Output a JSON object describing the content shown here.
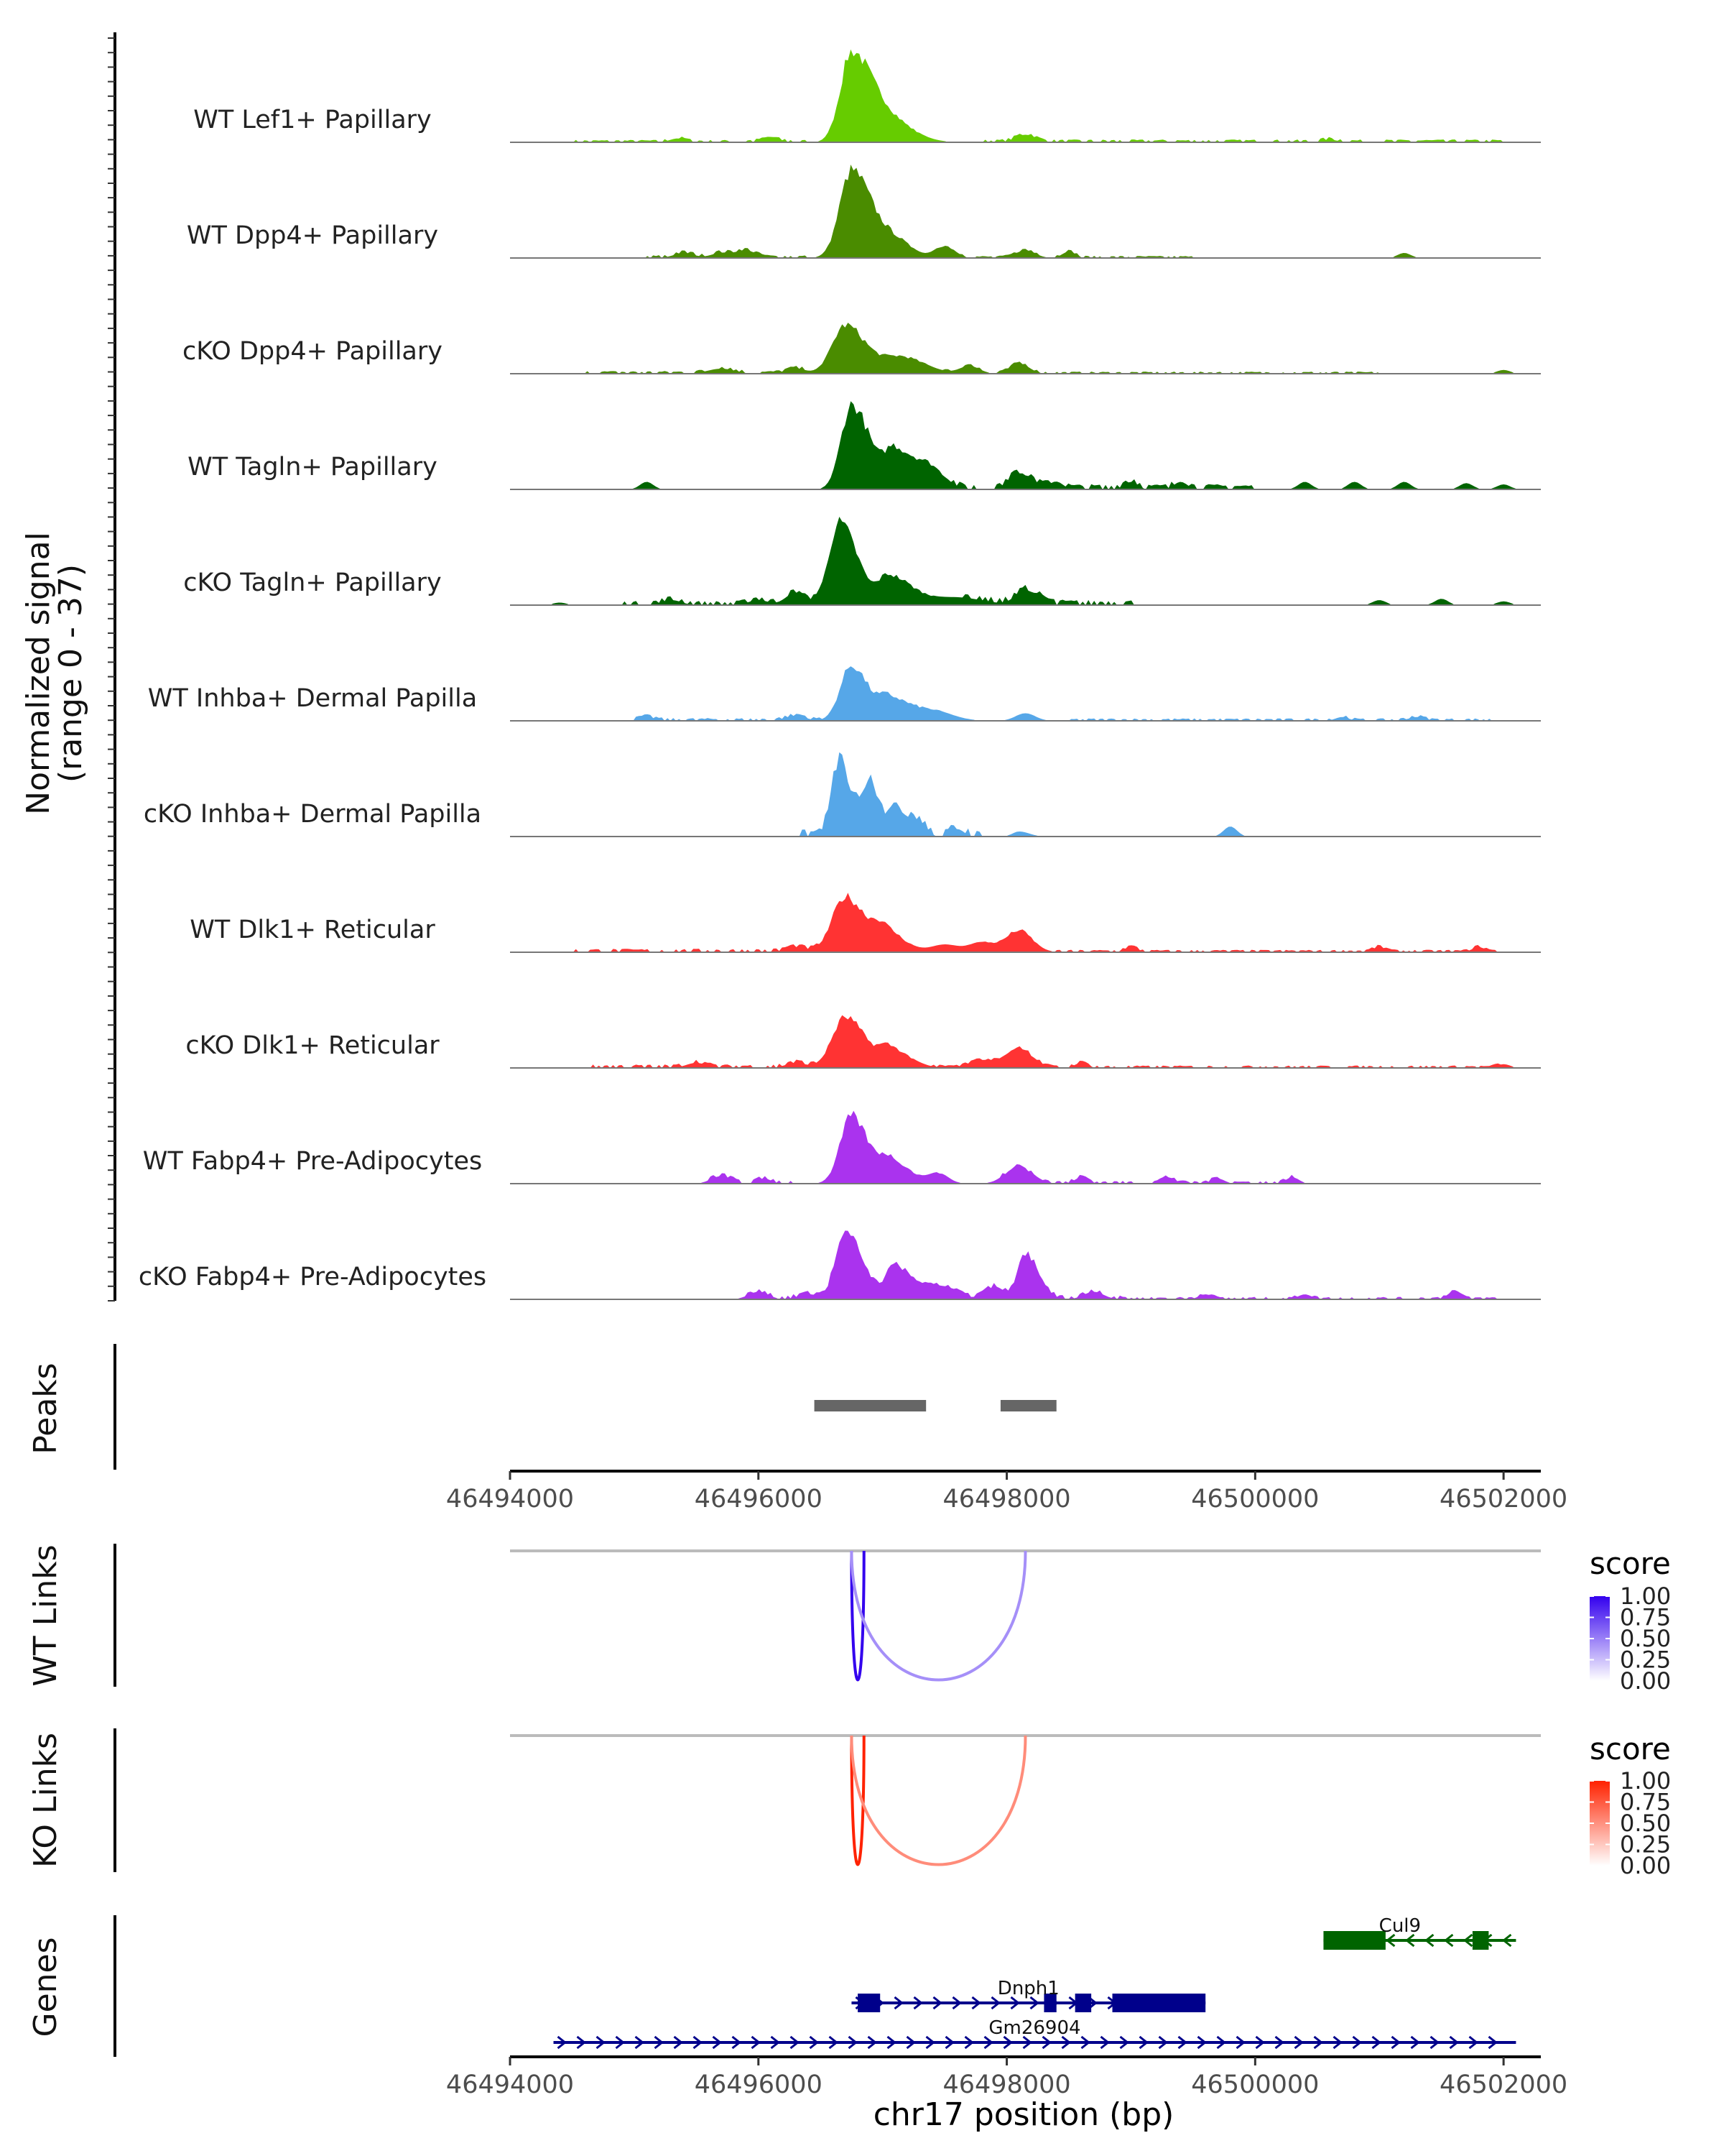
{
  "chart_data": {
    "type": "area",
    "chromosome": "chr17",
    "xlim": [
      46494000,
      46502300
    ],
    "x_ticks": [
      "46494000",
      "46496000",
      "46498000",
      "46500000",
      "46502000"
    ],
    "x_tick_values": [
      46494000,
      46496000,
      46498000,
      46500000,
      46502000
    ],
    "xlabel": "chr17 position (bp)",
    "ylabel_line1": "Normalized signal",
    "ylabel_line2": "(range 0 - 37)",
    "y_range": [
      0,
      37
    ],
    "tracks": [
      {
        "label": "WT Lef1+ Papillary",
        "color": "#66cc00",
        "peaks": [
          [
            46496750,
            37,
            170,
            300
          ],
          [
            46497050,
            9,
            250,
            350
          ],
          [
            46498150,
            3,
            150,
            150
          ],
          [
            46495350,
            1.5,
            120,
            120
          ],
          [
            46500600,
            1,
            120,
            120
          ],
          [
            46496100,
            1.5,
            150,
            150
          ]
        ],
        "noise": [
          [
            46494500,
            46496400,
            0.7
          ],
          [
            46497800,
            46502000,
            0.8
          ]
        ]
      },
      {
        "label": "WT Dpp4+ Papillary",
        "color": "#4a8c00",
        "peaks": [
          [
            46496750,
            36,
            180,
            300
          ],
          [
            46497100,
            7,
            250,
            250
          ],
          [
            46497500,
            5,
            150,
            150
          ],
          [
            46498150,
            3,
            150,
            150
          ],
          [
            46495900,
            3,
            150,
            150
          ],
          [
            46495700,
            2,
            150,
            150
          ],
          [
            46498500,
            2.5,
            100,
            100
          ],
          [
            46501200,
            2,
            100,
            100
          ],
          [
            46495400,
            2,
            150,
            150
          ]
        ],
        "noise": [
          [
            46495100,
            46496400,
            0.8
          ],
          [
            46497600,
            46499500,
            0.6
          ]
        ]
      },
      {
        "label": "cKO Dpp4+ Papillary",
        "color": "#4a8c00",
        "peaks": [
          [
            46496700,
            20,
            200,
            300
          ],
          [
            46497150,
            7,
            300,
            350
          ],
          [
            46497700,
            3,
            150,
            150
          ],
          [
            46498100,
            4,
            150,
            150
          ],
          [
            46495700,
            2,
            200,
            200
          ],
          [
            46496300,
            2,
            150,
            150
          ],
          [
            46502000,
            1.5,
            100,
            100
          ]
        ],
        "noise": [
          [
            46494600,
            46496400,
            0.8
          ],
          [
            46497500,
            46501000,
            0.6
          ]
        ]
      },
      {
        "label": "WT Tagln+ Papillary",
        "color": "#006400",
        "peaks": [
          [
            46496750,
            35,
            160,
            280
          ],
          [
            46497100,
            16,
            150,
            350
          ],
          [
            46497400,
            6,
            200,
            200
          ],
          [
            46498100,
            7,
            150,
            200
          ],
          [
            46495100,
            3,
            100,
            100
          ],
          [
            46498400,
            3,
            100,
            100
          ],
          [
            46499000,
            3,
            100,
            100
          ],
          [
            46499400,
            3,
            100,
            100
          ],
          [
            46500400,
            3,
            100,
            100
          ],
          [
            46500800,
            3,
            100,
            100
          ],
          [
            46501200,
            3,
            100,
            100
          ],
          [
            46501700,
            2.5,
            100,
            100
          ],
          [
            46502000,
            2,
            100,
            100
          ]
        ],
        "noise": [
          [
            46497500,
            46500000,
            1.5
          ]
        ]
      },
      {
        "label": "cKO Tagln+ Papillary",
        "color": "#006400",
        "peaks": [
          [
            46496650,
            34,
            160,
            280
          ],
          [
            46497050,
            12,
            150,
            350
          ],
          [
            46496300,
            5,
            150,
            150
          ],
          [
            46497600,
            3,
            400,
            400
          ],
          [
            46498150,
            6,
            150,
            200
          ],
          [
            46495300,
            2,
            150,
            150
          ],
          [
            46496000,
            2,
            150,
            150
          ],
          [
            46494400,
            1,
            100,
            100
          ],
          [
            46501000,
            2,
            100,
            100
          ],
          [
            46501500,
            2.5,
            100,
            100
          ],
          [
            46502000,
            1.5,
            100,
            100
          ]
        ],
        "noise": [
          [
            46494900,
            46496500,
            1.2
          ],
          [
            46497600,
            46499100,
            1.5
          ]
        ]
      },
      {
        "label": "WT Inhba+ Dermal Papilla",
        "color": "#56a7e8",
        "peaks": [
          [
            46496750,
            23,
            170,
            250
          ],
          [
            46497050,
            9,
            150,
            300
          ],
          [
            46497400,
            4,
            300,
            300
          ],
          [
            46498150,
            3,
            150,
            150
          ],
          [
            46496300,
            2,
            150,
            150
          ],
          [
            46495100,
            1.5,
            120,
            120
          ],
          [
            46501300,
            1.5,
            120,
            120
          ],
          [
            46500700,
            1.5,
            100,
            100
          ]
        ],
        "noise": [
          [
            46495000,
            46496500,
            0.8
          ],
          [
            46498500,
            46502000,
            0.7
          ]
        ]
      },
      {
        "label": "cKO Inhba+ Dermal Papilla",
        "color": "#56a7e8",
        "peaks": [
          [
            46496650,
            30,
            120,
            200
          ],
          [
            46496900,
            20,
            100,
            150
          ],
          [
            46497100,
            12,
            100,
            200
          ],
          [
            46497300,
            5,
            100,
            100
          ],
          [
            46497600,
            3,
            100,
            100
          ],
          [
            46498100,
            2,
            100,
            150
          ],
          [
            46499800,
            4,
            100,
            100
          ]
        ],
        "noise": [
          [
            46496300,
            46497800,
            2
          ]
        ]
      },
      {
        "label": "WT Dlk1+ Reticular",
        "color": "#ff3333",
        "peaks": [
          [
            46496700,
            23,
            200,
            300
          ],
          [
            46497000,
            9,
            150,
            300
          ],
          [
            46497500,
            3,
            200,
            200
          ],
          [
            46498100,
            9,
            200,
            200
          ],
          [
            46497800,
            4,
            200,
            200
          ],
          [
            46496300,
            2,
            150,
            150
          ],
          [
            46499000,
            2,
            100,
            100
          ],
          [
            46501000,
            2,
            100,
            100
          ],
          [
            46501800,
            2,
            100,
            100
          ]
        ],
        "noise": [
          [
            46494500,
            46496500,
            1
          ],
          [
            46498400,
            46502000,
            0.7
          ]
        ]
      },
      {
        "label": "cKO Dlk1+ Reticular",
        "color": "#ff3333",
        "peaks": [
          [
            46496700,
            21,
            200,
            300
          ],
          [
            46497050,
            8,
            150,
            300
          ],
          [
            46498100,
            8,
            200,
            200
          ],
          [
            46497800,
            3,
            200,
            200
          ],
          [
            46495500,
            2,
            150,
            150
          ],
          [
            46496300,
            2,
            150,
            150
          ],
          [
            46498600,
            2,
            100,
            100
          ],
          [
            46502000,
            1.5,
            100,
            100
          ]
        ],
        "noise": [
          [
            46494600,
            46496500,
            1
          ],
          [
            46497400,
            46502000,
            0.7
          ]
        ]
      },
      {
        "label": "WT Fabp4+ Pre-Adipocytes",
        "color": "#aa33ee",
        "peaks": [
          [
            46496750,
            28,
            170,
            250
          ],
          [
            46497050,
            10,
            150,
            300
          ],
          [
            46497450,
            4,
            150,
            150
          ],
          [
            46498100,
            7,
            200,
            200
          ],
          [
            46495700,
            3,
            150,
            150
          ],
          [
            46496050,
            2,
            100,
            100
          ],
          [
            46498600,
            2.5,
            100,
            100
          ],
          [
            46499300,
            2.5,
            100,
            100
          ],
          [
            46499700,
            2,
            100,
            100
          ],
          [
            46500300,
            2.5,
            100,
            100
          ]
        ],
        "noise": [
          [
            46495600,
            46496300,
            1
          ],
          [
            46497900,
            46500300,
            0.8
          ]
        ]
      },
      {
        "label": "cKO Fabp4+ Pre-Adipocytes",
        "color": "#aa33ee",
        "peaks": [
          [
            46496700,
            27,
            150,
            250
          ],
          [
            46497100,
            13,
            150,
            300
          ],
          [
            46497500,
            5,
            200,
            200
          ],
          [
            46498150,
            18,
            120,
            200
          ],
          [
            46497900,
            5,
            150,
            150
          ],
          [
            46496000,
            3,
            150,
            150
          ],
          [
            46496400,
            2,
            150,
            150
          ],
          [
            46498700,
            3,
            150,
            150
          ],
          [
            46499600,
            2,
            100,
            100
          ],
          [
            46500400,
            2,
            100,
            100
          ],
          [
            46501600,
            3,
            100,
            100
          ]
        ],
        "noise": [
          [
            46495900,
            46499000,
            1
          ],
          [
            46499000,
            46502000,
            0.7
          ]
        ]
      }
    ],
    "peaks_track": {
      "title": "Peaks",
      "color": "#666666",
      "regions": [
        [
          46496450,
          46497350
        ],
        [
          46497950,
          46498400
        ]
      ]
    },
    "link_tracks": [
      {
        "title": "WT Links",
        "legend_title": "score",
        "legend_ticks": [
          "1.00",
          "0.75",
          "0.50",
          "0.25",
          "0.00"
        ],
        "low_color": "#ffffff",
        "high_color": "#3300ee",
        "links": [
          {
            "start": 46496750,
            "end": 46496850,
            "score": 1.0
          },
          {
            "start": 46496750,
            "end": 46498150,
            "score": 0.3
          }
        ]
      },
      {
        "title": "KO Links",
        "legend_title": "score",
        "legend_ticks": [
          "1.00",
          "0.75",
          "0.50",
          "0.25",
          "0.00"
        ],
        "low_color": "#ffffff",
        "high_color": "#ff2200",
        "links": [
          {
            "start": 46496750,
            "end": 46496850,
            "score": 1.0
          },
          {
            "start": 46496750,
            "end": 46498150,
            "score": 0.4
          }
        ]
      }
    ],
    "genes_track": {
      "title": "Genes",
      "genes": [
        {
          "name": "Cul9",
          "strand": "-",
          "color": "#006400",
          "start": 46500550,
          "end": 46502100,
          "exons": [
            [
              46500550,
              46501050
            ],
            [
              46501750,
              46501880
            ]
          ]
        },
        {
          "name": "Dnph1",
          "strand": "+",
          "color": "#00008b",
          "start": 46496750,
          "end": 46499600,
          "exons": [
            [
              46496800,
              46496980
            ],
            [
              46498300,
              46498400
            ],
            [
              46498550,
              46498680
            ],
            [
              46498850,
              46499600
            ]
          ]
        },
        {
          "name": "Gm26904",
          "strand": "+",
          "color": "#00008b",
          "start": 46494350,
          "end": 46502100,
          "exons": []
        }
      ]
    }
  }
}
